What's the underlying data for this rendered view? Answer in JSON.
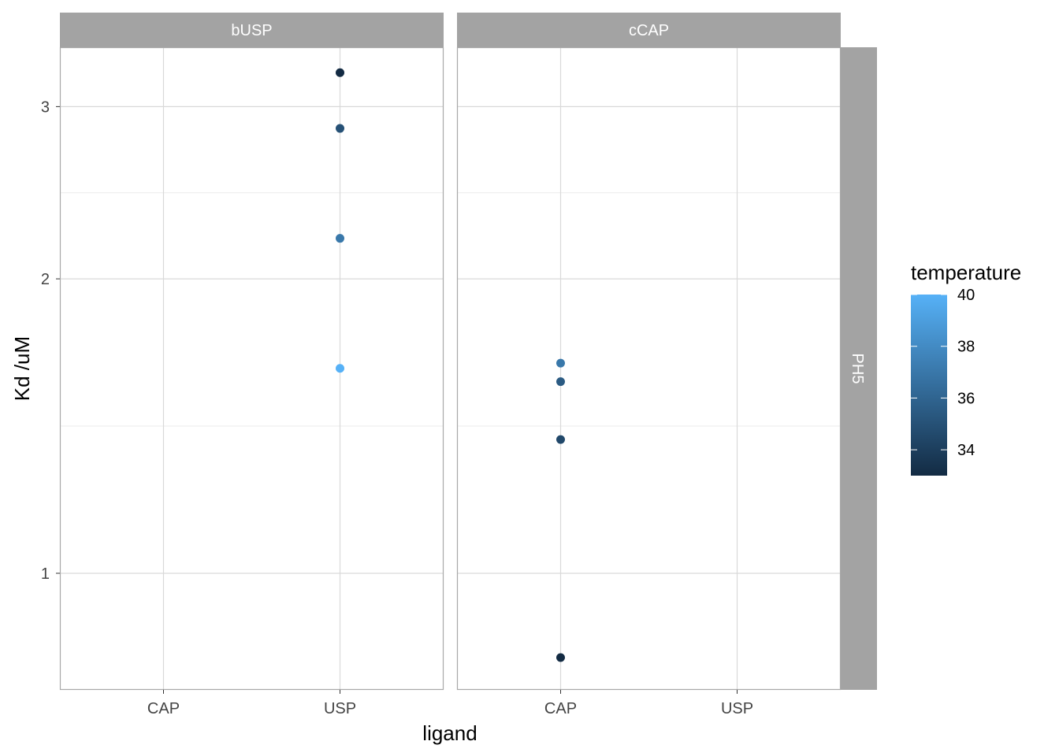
{
  "chart_data": {
    "type": "scatter",
    "facet_row_label": "PH5",
    "xlabel": "ligand",
    "ylabel": "Kd /uM",
    "x_categories": [
      "CAP",
      "USP"
    ],
    "y_scale": "log10",
    "y_ticks": [
      1,
      2,
      3
    ],
    "y_tick_labels": [
      "1",
      "2",
      "3"
    ],
    "ylim": [
      0.76,
      3.45
    ],
    "grid": true,
    "legend": {
      "title": "temperature",
      "placement": "right",
      "type": "colorbar",
      "min": 33,
      "max": 40,
      "ticks": [
        34,
        36,
        38,
        40
      ],
      "tick_labels": [
        "34",
        "36",
        "38",
        "40"
      ],
      "color_low": "#132B43",
      "color_high": "#56B1F7"
    },
    "panels": [
      {
        "label": "bUSP",
        "points": [
          {
            "x": "USP",
            "y": 3.25,
            "temperature": 33
          },
          {
            "x": "USP",
            "y": 2.85,
            "temperature": 35
          },
          {
            "x": "USP",
            "y": 2.2,
            "temperature": 37
          },
          {
            "x": "USP",
            "y": 1.62,
            "temperature": 40
          }
        ]
      },
      {
        "label": "cCAP",
        "points": [
          {
            "x": "CAP",
            "y": 1.64,
            "temperature": 37
          },
          {
            "x": "CAP",
            "y": 1.57,
            "temperature": 35.5
          },
          {
            "x": "CAP",
            "y": 1.37,
            "temperature": 34.5
          },
          {
            "x": "CAP",
            "y": 0.82,
            "temperature": 33
          }
        ]
      }
    ]
  }
}
